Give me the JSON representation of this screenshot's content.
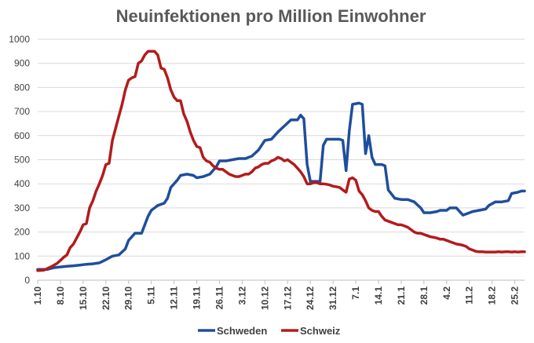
{
  "chart_data": {
    "type": "line",
    "title": "Neuinfektionen pro Million Einwohner",
    "xlabel": "",
    "ylabel": "",
    "ylim": [
      0,
      1000
    ],
    "yticks": [
      0,
      100,
      200,
      300,
      400,
      500,
      600,
      700,
      800,
      900,
      1000
    ],
    "xlim": [
      0,
      150
    ],
    "xticks": [
      {
        "label": "1.10",
        "day": 0
      },
      {
        "label": "8.10",
        "day": 7
      },
      {
        "label": "15.10",
        "day": 14
      },
      {
        "label": "22.10",
        "day": 21
      },
      {
        "label": "29.10",
        "day": 28
      },
      {
        "label": "5.11",
        "day": 35
      },
      {
        "label": "12.11",
        "day": 42
      },
      {
        "label": "19.11",
        "day": 49
      },
      {
        "label": "26.11",
        "day": 56
      },
      {
        "label": "3.12",
        "day": 63
      },
      {
        "label": "10.12",
        "day": 70
      },
      {
        "label": "17.12",
        "day": 77
      },
      {
        "label": "24.12",
        "day": 84
      },
      {
        "label": "31.12",
        "day": 91
      },
      {
        "label": "7.1",
        "day": 98
      },
      {
        "label": "14.1",
        "day": 105
      },
      {
        "label": "21.1",
        "day": 112
      },
      {
        "label": "28.1",
        "day": 119
      },
      {
        "label": "4.2",
        "day": 126
      },
      {
        "label": "11.2",
        "day": 133
      },
      {
        "label": "18.2",
        "day": 140
      },
      {
        "label": "25.2",
        "day": 147
      }
    ],
    "grid": true,
    "legend_position": "bottom",
    "series": [
      {
        "name": "Schweden",
        "color": "#1f4e9c",
        "points": [
          [
            0,
            45
          ],
          [
            3,
            45
          ],
          [
            5,
            52
          ],
          [
            7,
            55
          ],
          [
            9,
            58
          ],
          [
            11,
            60
          ],
          [
            13,
            63
          ],
          [
            15,
            66
          ],
          [
            17,
            68
          ],
          [
            19,
            72
          ],
          [
            21,
            85
          ],
          [
            23,
            100
          ],
          [
            25,
            105
          ],
          [
            27,
            130
          ],
          [
            28,
            165
          ],
          [
            30,
            195
          ],
          [
            32,
            195
          ],
          [
            33,
            230
          ],
          [
            34,
            265
          ],
          [
            35,
            290
          ],
          [
            36,
            300
          ],
          [
            37,
            310
          ],
          [
            39,
            320
          ],
          [
            40,
            340
          ],
          [
            41,
            385
          ],
          [
            43,
            415
          ],
          [
            44,
            435
          ],
          [
            46,
            440
          ],
          [
            48,
            435
          ],
          [
            49,
            425
          ],
          [
            51,
            430
          ],
          [
            53,
            440
          ],
          [
            55,
            470
          ],
          [
            56,
            495
          ],
          [
            58,
            495
          ],
          [
            60,
            500
          ],
          [
            62,
            505
          ],
          [
            64,
            505
          ],
          [
            66,
            515
          ],
          [
            68,
            540
          ],
          [
            70,
            580
          ],
          [
            72,
            585
          ],
          [
            74,
            615
          ],
          [
            76,
            640
          ],
          [
            78,
            665
          ],
          [
            80,
            665
          ],
          [
            81,
            685
          ],
          [
            82,
            670
          ],
          [
            83,
            480
          ],
          [
            84,
            410
          ],
          [
            86,
            410
          ],
          [
            87,
            410
          ],
          [
            88,
            560
          ],
          [
            89,
            585
          ],
          [
            91,
            585
          ],
          [
            93,
            585
          ],
          [
            94,
            580
          ],
          [
            95,
            455
          ],
          [
            96,
            620
          ],
          [
            97,
            730
          ],
          [
            99,
            735
          ],
          [
            100,
            730
          ],
          [
            101,
            525
          ],
          [
            102,
            600
          ],
          [
            103,
            510
          ],
          [
            104,
            480
          ],
          [
            106,
            480
          ],
          [
            107,
            475
          ],
          [
            108,
            375
          ],
          [
            110,
            340
          ],
          [
            112,
            335
          ],
          [
            114,
            335
          ],
          [
            116,
            325
          ],
          [
            118,
            300
          ],
          [
            119,
            280
          ],
          [
            121,
            280
          ],
          [
            123,
            285
          ],
          [
            124,
            290
          ],
          [
            126,
            290
          ],
          [
            127,
            300
          ],
          [
            129,
            300
          ],
          [
            131,
            270
          ],
          [
            132,
            275
          ],
          [
            134,
            285
          ],
          [
            136,
            290
          ],
          [
            138,
            295
          ],
          [
            139,
            310
          ],
          [
            141,
            325
          ],
          [
            143,
            325
          ],
          [
            145,
            330
          ],
          [
            146,
            360
          ],
          [
            148,
            365
          ],
          [
            149,
            370
          ],
          [
            150,
            370
          ]
        ]
      },
      {
        "name": "Schweiz",
        "color": "#b31b1b",
        "points": [
          [
            0,
            40
          ],
          [
            2,
            42
          ],
          [
            4,
            55
          ],
          [
            6,
            70
          ],
          [
            7,
            82
          ],
          [
            8,
            95
          ],
          [
            9,
            105
          ],
          [
            10,
            135
          ],
          [
            11,
            150
          ],
          [
            12,
            175
          ],
          [
            13,
            200
          ],
          [
            14,
            230
          ],
          [
            15,
            235
          ],
          [
            16,
            300
          ],
          [
            17,
            330
          ],
          [
            18,
            370
          ],
          [
            19,
            400
          ],
          [
            20,
            435
          ],
          [
            21,
            480
          ],
          [
            22,
            485
          ],
          [
            23,
            580
          ],
          [
            24,
            630
          ],
          [
            25,
            680
          ],
          [
            26,
            730
          ],
          [
            27,
            790
          ],
          [
            28,
            830
          ],
          [
            29,
            840
          ],
          [
            30,
            845
          ],
          [
            31,
            900
          ],
          [
            32,
            910
          ],
          [
            33,
            935
          ],
          [
            34,
            950
          ],
          [
            36,
            950
          ],
          [
            37,
            935
          ],
          [
            38,
            880
          ],
          [
            39,
            875
          ],
          [
            40,
            840
          ],
          [
            41,
            790
          ],
          [
            42,
            760
          ],
          [
            43,
            745
          ],
          [
            44,
            745
          ],
          [
            45,
            690
          ],
          [
            46,
            660
          ],
          [
            47,
            615
          ],
          [
            48,
            580
          ],
          [
            49,
            555
          ],
          [
            50,
            550
          ],
          [
            51,
            510
          ],
          [
            52,
            495
          ],
          [
            53,
            490
          ],
          [
            54,
            475
          ],
          [
            55,
            465
          ],
          [
            56,
            460
          ],
          [
            57,
            460
          ],
          [
            58,
            450
          ],
          [
            59,
            440
          ],
          [
            60,
            435
          ],
          [
            61,
            430
          ],
          [
            62,
            430
          ],
          [
            63,
            435
          ],
          [
            64,
            440
          ],
          [
            65,
            440
          ],
          [
            66,
            450
          ],
          [
            67,
            465
          ],
          [
            68,
            470
          ],
          [
            69,
            480
          ],
          [
            70,
            485
          ],
          [
            71,
            485
          ],
          [
            72,
            495
          ],
          [
            73,
            500
          ],
          [
            74,
            510
          ],
          [
            75,
            505
          ],
          [
            76,
            495
          ],
          [
            77,
            500
          ],
          [
            78,
            490
          ],
          [
            79,
            480
          ],
          [
            80,
            465
          ],
          [
            81,
            450
          ],
          [
            82,
            430
          ],
          [
            83,
            400
          ],
          [
            84,
            400
          ],
          [
            85,
            405
          ],
          [
            86,
            405
          ],
          [
            87,
            400
          ],
          [
            88,
            400
          ],
          [
            89,
            398
          ],
          [
            90,
            395
          ],
          [
            91,
            390
          ],
          [
            92,
            388
          ],
          [
            93,
            385
          ],
          [
            94,
            375
          ],
          [
            95,
            365
          ],
          [
            96,
            420
          ],
          [
            97,
            425
          ],
          [
            98,
            415
          ],
          [
            99,
            370
          ],
          [
            100,
            355
          ],
          [
            101,
            330
          ],
          [
            102,
            300
          ],
          [
            103,
            290
          ],
          [
            104,
            285
          ],
          [
            105,
            285
          ],
          [
            106,
            265
          ],
          [
            107,
            250
          ],
          [
            108,
            245
          ],
          [
            109,
            240
          ],
          [
            110,
            235
          ],
          [
            111,
            230
          ],
          [
            112,
            230
          ],
          [
            113,
            225
          ],
          [
            114,
            220
          ],
          [
            115,
            210
          ],
          [
            116,
            200
          ],
          [
            117,
            195
          ],
          [
            118,
            195
          ],
          [
            119,
            190
          ],
          [
            120,
            185
          ],
          [
            121,
            180
          ],
          [
            122,
            178
          ],
          [
            123,
            175
          ],
          [
            124,
            170
          ],
          [
            125,
            170
          ],
          [
            126,
            165
          ],
          [
            127,
            160
          ],
          [
            128,
            155
          ],
          [
            129,
            150
          ],
          [
            130,
            148
          ],
          [
            131,
            145
          ],
          [
            132,
            140
          ],
          [
            133,
            130
          ],
          [
            134,
            125
          ],
          [
            135,
            120
          ],
          [
            136,
            118
          ],
          [
            137,
            118
          ],
          [
            138,
            117
          ],
          [
            139,
            117
          ],
          [
            140,
            117
          ],
          [
            141,
            117
          ],
          [
            142,
            118
          ],
          [
            143,
            117
          ],
          [
            144,
            118
          ],
          [
            145,
            118
          ],
          [
            146,
            117
          ],
          [
            147,
            118
          ],
          [
            148,
            117
          ],
          [
            149,
            118
          ],
          [
            150,
            118
          ]
        ]
      }
    ]
  }
}
